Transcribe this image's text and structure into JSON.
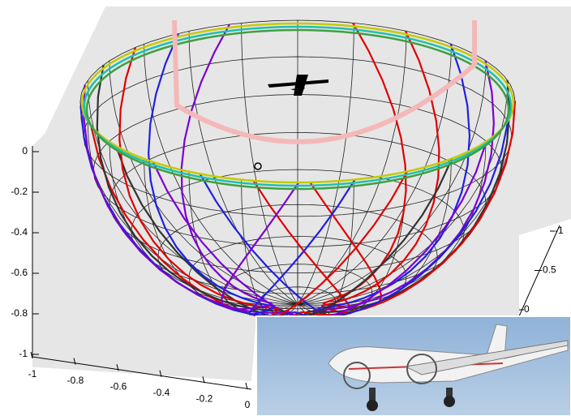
{
  "chart_data": {
    "type": "wireframe3d",
    "xticks": [
      -1,
      -0.8,
      -0.6,
      -0.4,
      -0.2,
      0
    ],
    "yticks": [
      -1,
      -0.5,
      0
    ],
    "zticks": [
      0,
      -0.2,
      -0.4,
      -0.6,
      -0.8,
      -1
    ],
    "xlim": [
      -1,
      0
    ],
    "ylim": [
      -1,
      0
    ],
    "zlim": [
      -1,
      0
    ]
  }
}
